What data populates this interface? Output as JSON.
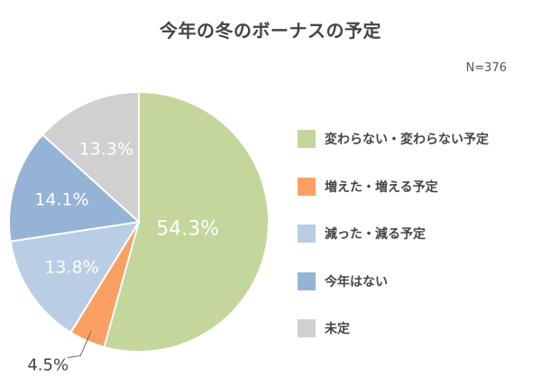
{
  "chart_data": {
    "type": "pie",
    "title": "今年の冬のボーナスの予定",
    "note": "N=376",
    "start_angle_deg": 0,
    "direction": "clockwise",
    "legend_position": "right",
    "slices": [
      {
        "label": "変わらない・変わらない予定",
        "value": 54.3,
        "value_text": "54.3%",
        "color": "#c3d69b",
        "text_color": "#ffffff"
      },
      {
        "label": "増えた・増える予定",
        "value": 4.5,
        "value_text": "4.5%",
        "color": "#f9a062",
        "text_color": "#444444"
      },
      {
        "label": "減った・減る予定",
        "value": 13.8,
        "value_text": "13.8%",
        "color": "#b9cde4",
        "text_color": "#ffffff"
      },
      {
        "label": "今年はない",
        "value": 14.1,
        "value_text": "14.1%",
        "color": "#95b3d7",
        "text_color": "#ffffff"
      },
      {
        "label": "未定",
        "value": 13.3,
        "value_text": "13.3%",
        "color": "#d0d0d0",
        "text_color": "#ffffff"
      }
    ]
  }
}
